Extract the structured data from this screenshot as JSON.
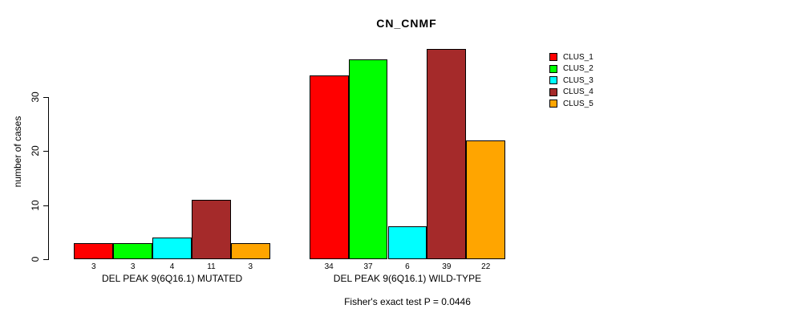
{
  "chart_data": {
    "type": "bar",
    "title": "CN_CNMF",
    "ylabel": "number of cases",
    "xlabel": "",
    "annotation": "Fisher's exact test P = 0.0446",
    "categories": [
      "DEL PEAK 9(6Q16.1) MUTATED",
      "DEL PEAK 9(6Q16.1) WILD-TYPE"
    ],
    "series": [
      {
        "name": "CLUS_1",
        "color": "#FF0000",
        "values": [
          3,
          34
        ]
      },
      {
        "name": "CLUS_2",
        "color": "#00FF00",
        "values": [
          3,
          37
        ]
      },
      {
        "name": "CLUS_3",
        "color": "#00FFFF",
        "values": [
          4,
          6
        ]
      },
      {
        "name": "CLUS_4",
        "color": "#A52A2A",
        "values": [
          11,
          39
        ]
      },
      {
        "name": "CLUS_5",
        "color": "#FFA500",
        "values": [
          3,
          22
        ]
      }
    ],
    "yticks": [
      0,
      10,
      20,
      30
    ],
    "ylim": [
      0,
      39
    ],
    "grid": false,
    "legend_position": "right",
    "bar_value_labels": true
  }
}
